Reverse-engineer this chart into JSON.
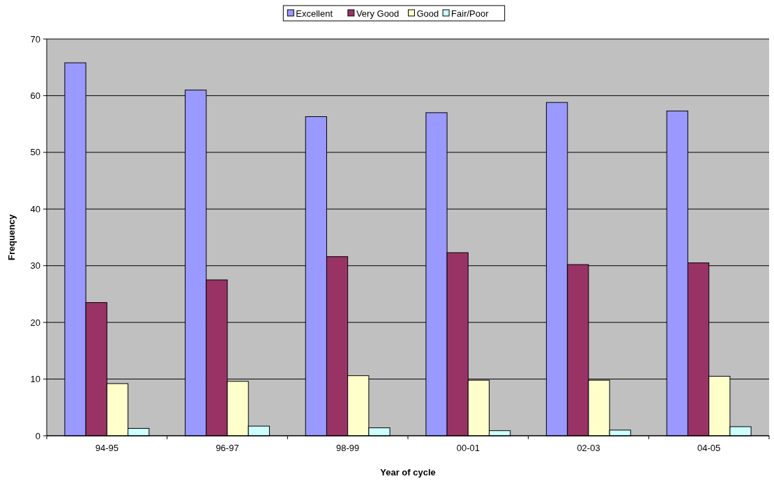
{
  "chart_data": {
    "type": "bar",
    "xlabel": "Year of cycle",
    "ylabel": "Frequency",
    "categories": [
      "94-95",
      "96-97",
      "98-99",
      "00-01",
      "02-03",
      "04-05"
    ],
    "series": [
      {
        "name": "Excellent",
        "color": "#9999ff",
        "values": [
          65.8,
          61.0,
          56.3,
          57.0,
          58.8,
          57.3
        ]
      },
      {
        "name": "Very Good",
        "color": "#993366",
        "values": [
          23.5,
          27.5,
          31.6,
          32.3,
          30.2,
          30.5
        ]
      },
      {
        "name": "Good",
        "color": "#ffffcc",
        "values": [
          9.2,
          9.6,
          10.6,
          9.8,
          9.8,
          10.5
        ]
      },
      {
        "name": "Fair/Poor",
        "color": "#ccffff",
        "values": [
          1.3,
          1.7,
          1.4,
          0.9,
          1.0,
          1.6
        ]
      }
    ],
    "ylim": [
      0,
      70
    ],
    "yticks": [
      0,
      10,
      20,
      30,
      40,
      50,
      60,
      70
    ],
    "grid": "y",
    "legend": "top"
  }
}
